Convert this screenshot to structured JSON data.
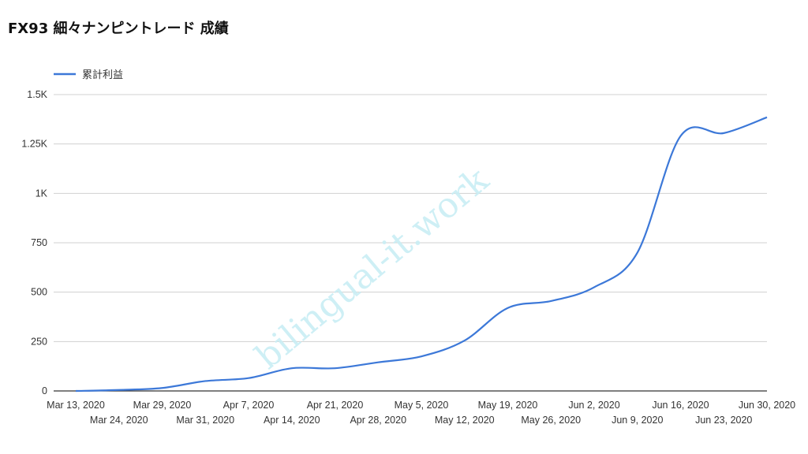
{
  "chart_data": {
    "type": "line",
    "title": "FX93 細々ナンピントレード 成績",
    "legend_position": "top-left",
    "grid": true,
    "ylim": [
      0,
      1500
    ],
    "y_ticks": [
      {
        "value": 0,
        "label": "0"
      },
      {
        "value": 250,
        "label": "250"
      },
      {
        "value": 500,
        "label": "500"
      },
      {
        "value": 750,
        "label": "750"
      },
      {
        "value": 1000,
        "label": "1K"
      },
      {
        "value": 1250,
        "label": "1.25K"
      },
      {
        "value": 1500,
        "label": "1.5K"
      }
    ],
    "x_ticks": [
      "Mar 13, 2020",
      "Mar 24, 2020",
      "Mar 29, 2020",
      "Mar 31, 2020",
      "Apr 7, 2020",
      "Apr 14, 2020",
      "Apr 21, 2020",
      "Apr 28, 2020",
      "May 5, 2020",
      "May 12, 2020",
      "May 19, 2020",
      "May 26, 2020",
      "Jun 2, 2020",
      "Jun 9, 2020",
      "Jun 16, 2020",
      "Jun 23, 2020",
      "Jun 30, 2020"
    ],
    "series": [
      {
        "name": "累計利益",
        "color": "#3c78d8",
        "values": [
          0,
          5,
          15,
          50,
          65,
          115,
          115,
          145,
          175,
          255,
          420,
          455,
          525,
          700,
          1290,
          1305,
          1385
        ]
      }
    ]
  },
  "watermark": "bilingual-it.work"
}
